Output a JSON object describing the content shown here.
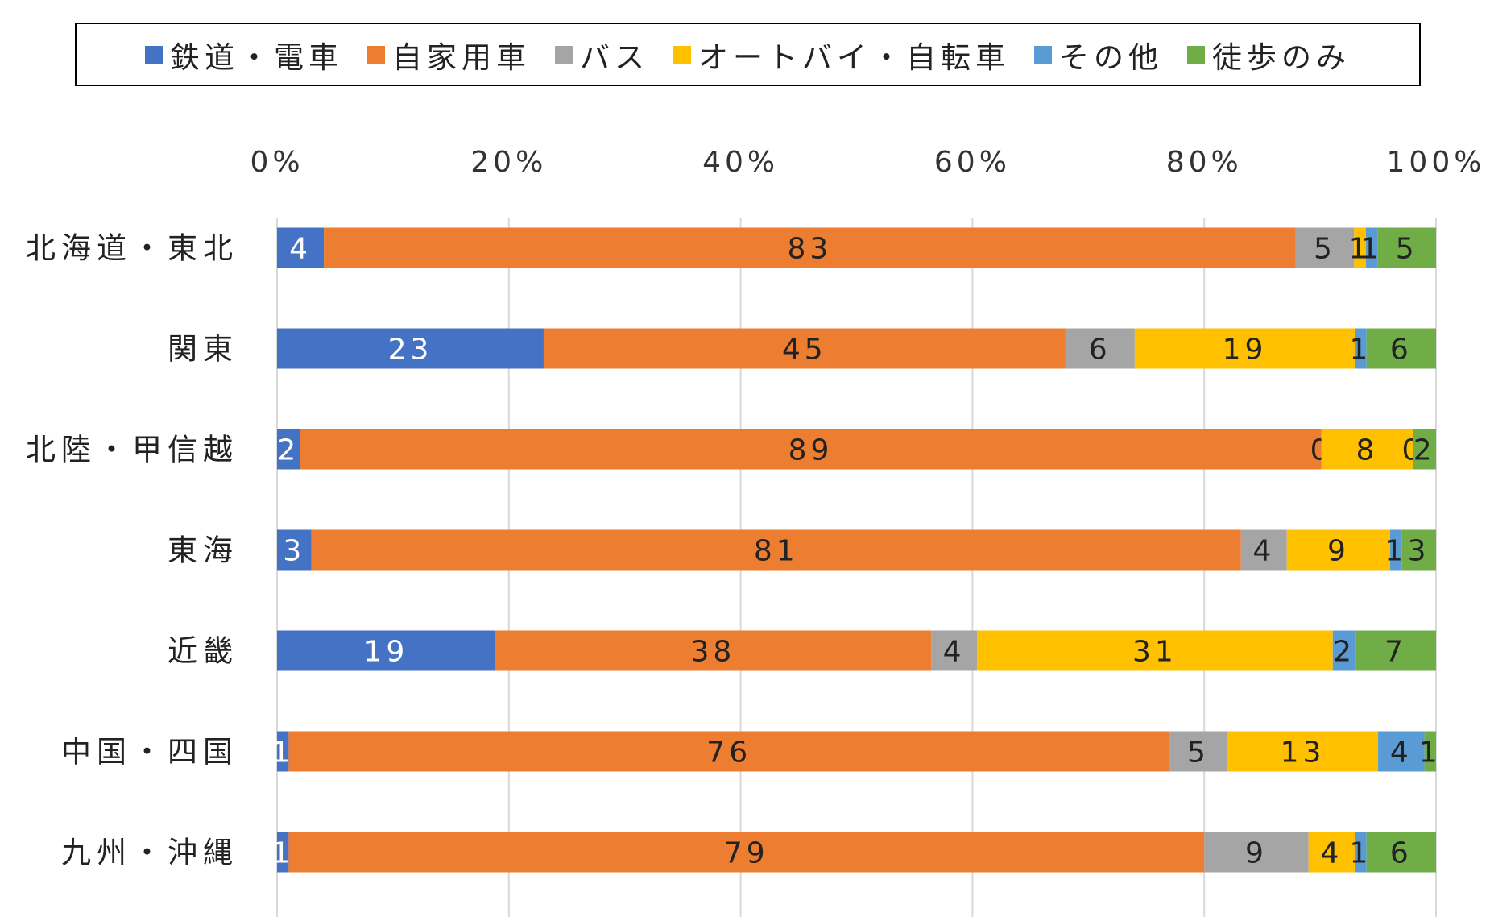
{
  "chart_data": {
    "type": "bar",
    "orientation": "horizontal",
    "stacked": "percent",
    "categories": [
      "北海道・東北",
      "関東",
      "北陸・甲信越",
      "東海",
      "近畿",
      "中国・四国",
      "九州・沖縄"
    ],
    "series": [
      {
        "name": "鉄道・電車",
        "color": "#4472C4",
        "label_color": "#ffffff",
        "values": [
          4,
          23,
          2,
          3,
          19,
          1,
          1
        ]
      },
      {
        "name": "自家用車",
        "color": "#ED7D31",
        "label_color": "#222222",
        "values": [
          83,
          45,
          89,
          81,
          38,
          76,
          79
        ]
      },
      {
        "name": "バス",
        "color": "#A5A5A5",
        "label_color": "#222222",
        "values": [
          5,
          6,
          0,
          4,
          4,
          5,
          9
        ]
      },
      {
        "name": "オートバイ・自転車",
        "color": "#FFC000",
        "label_color": "#222222",
        "values": [
          1,
          19,
          8,
          9,
          31,
          13,
          4
        ]
      },
      {
        "name": "その他",
        "color": "#5B9BD5",
        "label_color": "#222222",
        "values": [
          1,
          1,
          0,
          1,
          2,
          4,
          1
        ]
      },
      {
        "name": "徒歩のみ",
        "color": "#70AD47",
        "label_color": "#222222",
        "values": [
          5,
          6,
          2,
          3,
          7,
          1,
          6
        ]
      }
    ],
    "x_ticks": [
      "0%",
      "20%",
      "40%",
      "60%",
      "80%",
      "100%"
    ],
    "xlim": [
      0,
      100
    ],
    "x_axis_position": "top",
    "grid": true,
    "legend_position": "top",
    "title": "",
    "xlabel": "",
    "ylabel": ""
  }
}
